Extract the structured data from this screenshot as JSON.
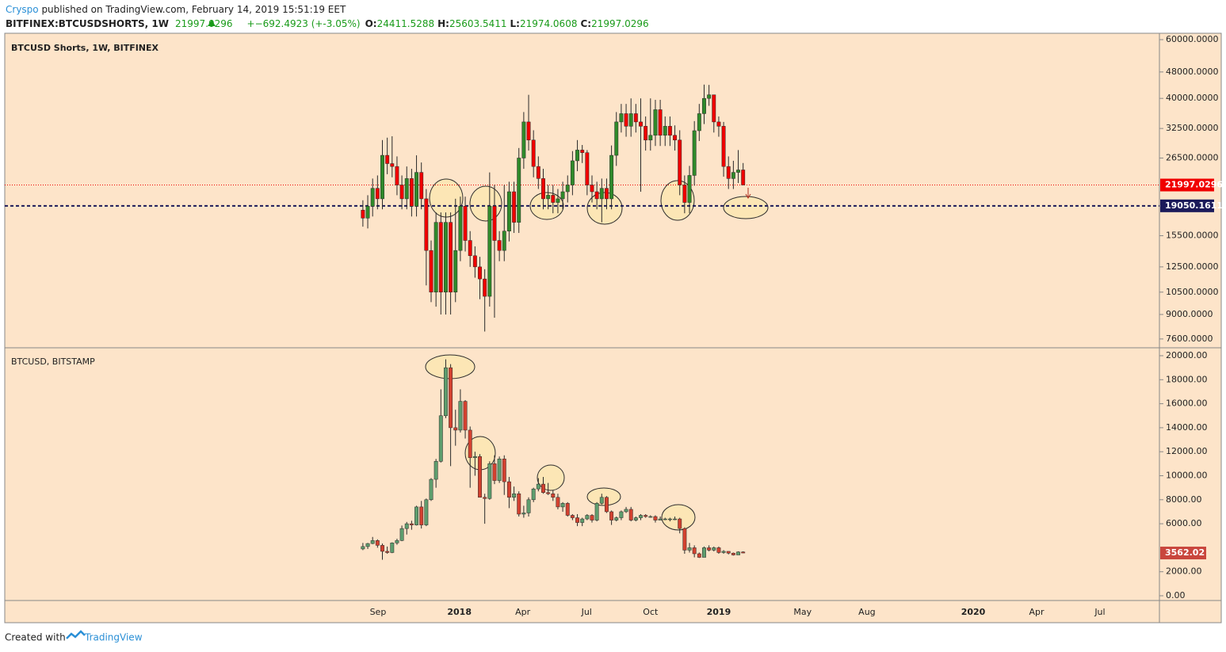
{
  "header": {
    "author": "Cryspo",
    "published": " published on TradingView.com, February 14, 2019 15:51:19 EET",
    "symbol": "BITFINEX:BTCUSDSHORTS, 1W",
    "change": "+−692.4923 (+-3.05%)",
    "ohlc_labels": [
      "O:",
      "H:",
      "L:",
      "C:"
    ]
  },
  "footer": {
    "created": "Created with",
    "brand": "TradingView"
  },
  "xaxis": {
    "xlim": [
      -73.3,
      163.4
    ],
    "xticks": [
      {
        "value": 3.1,
        "label": "Sep"
      },
      {
        "value": 19.8,
        "label": "2018"
      },
      {
        "value": 32.8,
        "label": "Apr"
      },
      {
        "value": 45.9,
        "label": "Jul"
      },
      {
        "value": 59.0,
        "label": "Oct"
      },
      {
        "value": 73.0,
        "label": "2019"
      },
      {
        "value": 90.2,
        "label": "May"
      },
      {
        "value": 103.4,
        "label": "Aug"
      },
      {
        "value": 125.2,
        "label": "2020"
      },
      {
        "value": 138.2,
        "label": "Apr"
      },
      {
        "value": 151.2,
        "label": "Jul"
      }
    ]
  },
  "chart_data": [
    {
      "type": "candlestick",
      "title": "BTCUSD Shorts, 1W, BITFINEX",
      "log_scale": true,
      "up_color": "#2f8a2a",
      "down_color": "#f00000",
      "last_color": "#f00000",
      "hline": 19050.1611,
      "hline_color": "#1b1a5a",
      "ylim": [
        7190,
        62700
      ],
      "yticks": [
        {
          "value": 60000,
          "label": "60000.0000"
        },
        {
          "value": 48000,
          "label": "48000.0000"
        },
        {
          "value": 40000,
          "label": "40000.0000"
        },
        {
          "value": 32500,
          "label": "32500.0000"
        },
        {
          "value": 26500,
          "label": "26500.0000"
        },
        {
          "value": 15500,
          "label": "15500.0000"
        },
        {
          "value": 12500,
          "label": "12500.0000"
        },
        {
          "value": 10500,
          "label": "10500.0000"
        },
        {
          "value": 9000,
          "label": "9000.0000"
        },
        {
          "value": 7600,
          "label": "7600.0000"
        }
      ],
      "ohlc": [
        [
          18500,
          19800,
          16500,
          17500
        ],
        [
          17500,
          20500,
          16300,
          19000
        ],
        [
          19000,
          23000,
          17700,
          21500
        ],
        [
          21500,
          23500,
          18600,
          20000
        ],
        [
          20000,
          30000,
          18600,
          27000
        ],
        [
          27000,
          30500,
          23700,
          25500
        ],
        [
          25500,
          30800,
          23200,
          25000
        ],
        [
          25000,
          26800,
          20500,
          22000
        ],
        [
          22000,
          23500,
          18600,
          20000
        ],
        [
          20000,
          25000,
          18600,
          23000
        ],
        [
          23000,
          24600,
          17700,
          19000
        ],
        [
          19000,
          27000,
          17700,
          24000
        ],
        [
          24000,
          25700,
          18600,
          20000
        ],
        [
          20000,
          21400,
          11000,
          14000
        ],
        [
          14000,
          15000,
          9800,
          10500
        ],
        [
          10500,
          18200,
          9500,
          17000
        ],
        [
          17000,
          18200,
          9000,
          10500
        ],
        [
          10500,
          18200,
          9000,
          17000
        ],
        [
          17000,
          18200,
          9000,
          10500
        ],
        [
          10500,
          20000,
          9800,
          14000
        ],
        [
          14000,
          20300,
          13000,
          19000
        ],
        [
          19000,
          20300,
          13900,
          15000
        ],
        [
          15000,
          16000,
          12500,
          13500
        ],
        [
          13500,
          14400,
          11600,
          12500
        ],
        [
          12500,
          13400,
          10000,
          11500
        ],
        [
          11500,
          12300,
          8000,
          10200
        ],
        [
          10200,
          24000,
          9500,
          19000
        ],
        [
          19000,
          22000,
          8800,
          15000
        ],
        [
          15000,
          16000,
          13000,
          14000
        ],
        [
          14000,
          22000,
          13000,
          16000
        ],
        [
          16000,
          22500,
          14900,
          21000
        ],
        [
          21000,
          22500,
          15800,
          17000
        ],
        [
          17000,
          28400,
          15800,
          26500
        ],
        [
          26500,
          36400,
          24600,
          34000
        ],
        [
          34000,
          41000,
          27900,
          30000
        ],
        [
          30000,
          32100,
          23200,
          25000
        ],
        [
          25000,
          26800,
          21400,
          23000
        ],
        [
          23000,
          24600,
          18600,
          20000
        ],
        [
          20000,
          22000,
          18600,
          20500
        ],
        [
          20500,
          22000,
          18100,
          19500
        ],
        [
          19500,
          21400,
          18100,
          20000
        ],
        [
          20000,
          22500,
          18600,
          21000
        ],
        [
          21000,
          23500,
          19500,
          22000
        ],
        [
          22000,
          27800,
          20500,
          26000
        ],
        [
          26000,
          30000,
          24200,
          28000
        ],
        [
          28000,
          29000,
          25600,
          27500
        ],
        [
          27500,
          28000,
          20500,
          22000
        ],
        [
          22000,
          23500,
          19500,
          21000
        ],
        [
          21000,
          22500,
          18600,
          20000
        ],
        [
          20000,
          23000,
          17000,
          21500
        ],
        [
          21500,
          23000,
          18600,
          20000
        ],
        [
          20000,
          28900,
          18600,
          27000
        ],
        [
          27000,
          36400,
          25100,
          34000
        ],
        [
          34000,
          38500,
          31600,
          36000
        ],
        [
          36000,
          38500,
          30700,
          33000
        ],
        [
          33000,
          40000,
          30700,
          36000
        ],
        [
          36000,
          38500,
          31600,
          34000
        ],
        [
          34000,
          40000,
          21000,
          33000
        ],
        [
          33000,
          35300,
          27900,
          30000
        ],
        [
          30000,
          40000,
          27900,
          31000
        ],
        [
          31000,
          39600,
          28800,
          37000
        ],
        [
          37000,
          39600,
          28800,
          31000
        ],
        [
          31000,
          35300,
          28800,
          33000
        ],
        [
          33000,
          35300,
          28800,
          31000
        ],
        [
          31000,
          33200,
          27900,
          30000
        ],
        [
          30000,
          32100,
          20500,
          22000
        ],
        [
          22000,
          23500,
          18100,
          19500
        ],
        [
          19500,
          25100,
          18100,
          23500
        ],
        [
          23500,
          34200,
          21900,
          32000
        ],
        [
          32000,
          38500,
          29800,
          36000
        ],
        [
          36000,
          44000,
          33500,
          40000
        ],
        [
          40000,
          43900,
          38000,
          41000
        ],
        [
          41000,
          41000,
          31600,
          34000
        ],
        [
          34000,
          35300,
          30700,
          33000
        ],
        [
          33000,
          34000,
          23300,
          25000
        ],
        [
          25000,
          26800,
          21400,
          23000
        ],
        [
          23000,
          26000,
          21400,
          24000
        ],
        [
          24000,
          28000,
          22300,
          24411.5288
        ],
        [
          24411.5288,
          25603.5411,
          21974.0608,
          21997.0296
        ]
      ]
    },
    {
      "type": "candlestick",
      "title": "BTCUSD, BITSTAMP",
      "log_scale": false,
      "up_color": "#5e9e6e",
      "down_color": "#d3412f",
      "last_color": "#c9463d",
      "ylim": [
        -396,
        20594
      ],
      "yticks": [
        {
          "value": 20000,
          "label": "20000.00"
        },
        {
          "value": 18000,
          "label": "18000.00"
        },
        {
          "value": 16000,
          "label": "16000.00"
        },
        {
          "value": 14000,
          "label": "14000.00"
        },
        {
          "value": 12000,
          "label": "12000.00"
        },
        {
          "value": 10000,
          "label": "10000.00"
        },
        {
          "value": 8000,
          "label": "8000.00"
        },
        {
          "value": 6000,
          "label": "6000.00"
        },
        {
          "value": 2000,
          "label": "2000.00"
        },
        {
          "value": 0,
          "label": "0.00"
        }
      ],
      "ohlc": [
        [
          3900,
          4400,
          3800,
          4100
        ],
        [
          4100,
          4400,
          3900,
          4350
        ],
        [
          4350,
          4900,
          4300,
          4600
        ],
        [
          4600,
          4700,
          4000,
          4200
        ],
        [
          4200,
          4350,
          3000,
          3700
        ],
        [
          3700,
          4100,
          3500,
          3600
        ],
        [
          3600,
          4450,
          3550,
          4400
        ],
        [
          4400,
          4750,
          4250,
          4600
        ],
        [
          4600,
          5850,
          4550,
          5600
        ],
        [
          5600,
          6150,
          5100,
          6000
        ],
        [
          6000,
          6250,
          5500,
          5900
        ],
        [
          5900,
          7500,
          5850,
          7400
        ],
        [
          7400,
          7900,
          5600,
          5900
        ],
        [
          5900,
          8100,
          5800,
          8000
        ],
        [
          8000,
          9800,
          7900,
          9700
        ],
        [
          9700,
          11400,
          9000,
          11200
        ],
        [
          11200,
          17200,
          11100,
          15000
        ],
        [
          15000,
          19700,
          14800,
          19000
        ],
        [
          19000,
          19300,
          10800,
          14000
        ],
        [
          14000,
          15500,
          12500,
          13800
        ],
        [
          13800,
          17200,
          13600,
          16200
        ],
        [
          16200,
          16300,
          13100,
          13800
        ],
        [
          13800,
          14100,
          9000,
          11500
        ],
        [
          11500,
          12000,
          10000,
          11600
        ],
        [
          11600,
          11800,
          8200,
          8200
        ],
        [
          8200,
          8500,
          6000,
          8100
        ],
        [
          8100,
          11200,
          8000,
          11000
        ],
        [
          11000,
          11700,
          9300,
          9600
        ],
        [
          9600,
          11600,
          9400,
          11400
        ],
        [
          11400,
          11700,
          8400,
          9500
        ],
        [
          9500,
          9900,
          7300,
          8200
        ],
        [
          8200,
          9100,
          7900,
          8500
        ],
        [
          8500,
          8700,
          6600,
          6800
        ],
        [
          6800,
          7500,
          6500,
          6900
        ],
        [
          6900,
          8200,
          6600,
          8000
        ],
        [
          8000,
          9000,
          7800,
          8900
        ],
        [
          8900,
          9800,
          8700,
          9300
        ],
        [
          9300,
          9900,
          8500,
          8600
        ],
        [
          8600,
          9400,
          8400,
          8500
        ],
        [
          8500,
          8800,
          7900,
          8200
        ],
        [
          8200,
          8500,
          7200,
          7400
        ],
        [
          7400,
          7800,
          7000,
          7700
        ],
        [
          7700,
          7800,
          6600,
          6700
        ],
        [
          6700,
          6800,
          6300,
          6500
        ],
        [
          6500,
          6800,
          5800,
          6100
        ],
        [
          6100,
          6500,
          5800,
          6400
        ],
        [
          6400,
          6800,
          6300,
          6700
        ],
        [
          6700,
          6800,
          6100,
          6300
        ],
        [
          6300,
          7800,
          6200,
          7700
        ],
        [
          7700,
          8500,
          7600,
          8200
        ],
        [
          8200,
          8300,
          6900,
          7000
        ],
        [
          7000,
          7100,
          5900,
          6300
        ],
        [
          6300,
          6600,
          6200,
          6500
        ],
        [
          6500,
          7100,
          6300,
          7000
        ],
        [
          7000,
          7400,
          6900,
          7200
        ],
        [
          7200,
          7400,
          6200,
          6300
        ],
        [
          6300,
          6600,
          6200,
          6500
        ],
        [
          6500,
          6800,
          6300,
          6700
        ],
        [
          6700,
          6800,
          6500,
          6600
        ],
        [
          6600,
          6700,
          6500,
          6600
        ],
        [
          6600,
          6700,
          6100,
          6300
        ],
        [
          6300,
          6600,
          6300,
          6400
        ],
        [
          6400,
          6500,
          6300,
          6400
        ],
        [
          6400,
          6500,
          6200,
          6400
        ],
        [
          6400,
          6600,
          6300,
          6400
        ],
        [
          6400,
          6500,
          5200,
          5600
        ],
        [
          5600,
          5700,
          3500,
          3800
        ],
        [
          3800,
          4400,
          3600,
          4000
        ],
        [
          4000,
          4200,
          3200,
          3500
        ],
        [
          3500,
          3600,
          3150,
          3200
        ],
        [
          3200,
          4100,
          3200,
          4000
        ],
        [
          4000,
          4200,
          3700,
          3800
        ],
        [
          3800,
          4100,
          3700,
          4000
        ],
        [
          4000,
          4100,
          3500,
          3600
        ],
        [
          3600,
          3800,
          3500,
          3700
        ],
        [
          3700,
          3700,
          3450,
          3550
        ],
        [
          3550,
          3600,
          3350,
          3400
        ],
        [
          3400,
          3700,
          3400,
          3650
        ],
        [
          3650,
          3700,
          3550,
          3562.02
        ]
      ]
    }
  ]
}
